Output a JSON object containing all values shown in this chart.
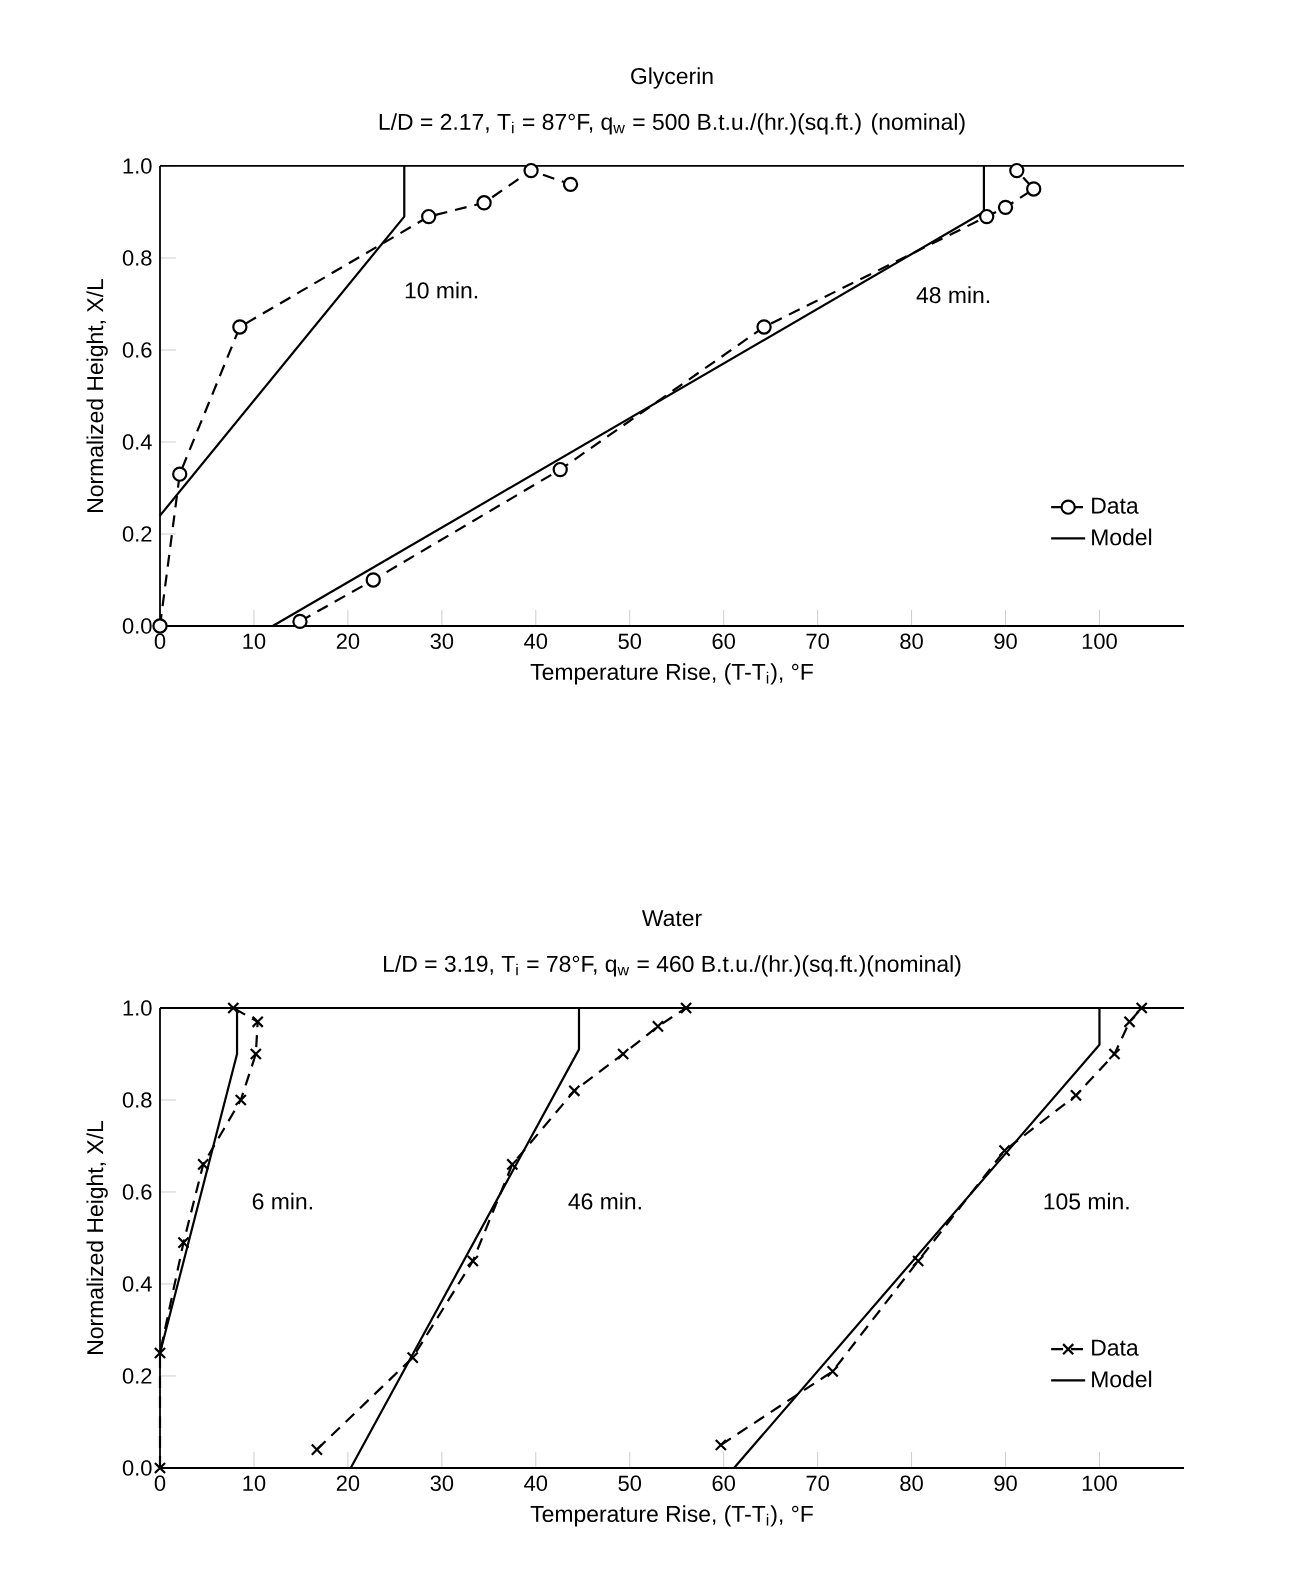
{
  "chart_data": [
    {
      "type": "line",
      "title": "Glycerin",
      "subtitle": "L/D = 2.17,  T$_{i}$ = 87°F,  q$_{w}$ = 500   B.t.u./(hr.)(sq.ft.) (nominal)",
      "xlabel": "Temperature Rise, (T-T$_{i}$), °F",
      "ylabel": "Normalized Height, X/L",
      "xlim": [
        0,
        109
      ],
      "ylim": [
        0,
        1.0
      ],
      "xticks": [
        0,
        10,
        20,
        30,
        40,
        50,
        60,
        70,
        80,
        90,
        100
      ],
      "yticks": [
        {
          "value": 0,
          "label": "0.0"
        },
        {
          "value": 0.2,
          "label": "0.2"
        },
        {
          "value": 0.4,
          "label": "0.4"
        },
        {
          "value": 0.6,
          "label": "0.6"
        },
        {
          "value": 0.8,
          "label": "0.8"
        },
        {
          "value": 1.0,
          "label": "1.0"
        }
      ],
      "legend": "bottom right",
      "series": [
        {
          "name": "Data",
          "color": "#000000",
          "marker": "circle",
          "line_style": "dashed",
          "x": [
            0,
            2.1,
            8.5,
            28.6,
            34.5,
            39.5,
            43.7
          ],
          "values": [
            0,
            0.33,
            0.65,
            0.89,
            0.92,
            0.99,
            0.96
          ]
        },
        {
          "name": "Model",
          "color": "#000000",
          "marker": "none",
          "line_style": "solid",
          "x": [
            0,
            26,
            26
          ],
          "values": [
            0.24,
            0.89,
            1.0
          ]
        },
        {
          "color": "#000000",
          "marker": "circle",
          "line_style": "dashed",
          "x": [
            14.9,
            22.7,
            42.6,
            64.3,
            88,
            90,
            93,
            91.2
          ],
          "values": [
            0.01,
            0.1,
            0.34,
            0.65,
            0.89,
            0.91,
            0.95,
            0.99
          ]
        },
        {
          "color": "#000000",
          "marker": "none",
          "line_style": "solid",
          "x": [
            12,
            87.7,
            87.7
          ],
          "values": [
            0,
            0.9,
            1.0
          ]
        }
      ],
      "annotations": [
        "10 min.",
        "48 min."
      ]
    },
    {
      "type": "line",
      "title": "Water",
      "subtitle": "L/D = 3.19,  T$_{i}$ = 78°F,  q$_{w}$ = 460   B.t.u./(hr.)(sq.ft.)(nominal)",
      "xlabel": "Temperature Rise, (T-T$_{i}$), °F",
      "ylabel": "Normalized Height, X/L",
      "xlim": [
        0,
        109
      ],
      "ylim": [
        0,
        1.0
      ],
      "xticks": [
        0,
        10,
        20,
        30,
        40,
        50,
        60,
        70,
        80,
        90,
        100
      ],
      "yticks": [
        {
          "value": 0,
          "label": "0.0"
        },
        {
          "value": 0.2,
          "label": "0.2"
        },
        {
          "value": 0.4,
          "label": "0.4"
        },
        {
          "value": 0.6,
          "label": "0.6"
        },
        {
          "value": 0.8,
          "label": "0.8"
        },
        {
          "value": 1.0,
          "label": "1.0"
        }
      ],
      "legend": "bottom right",
      "series": [
        {
          "name": "Data",
          "color": "#000000",
          "marker": "cross",
          "line_style": "dashed",
          "x": [
            0,
            0,
            2.5,
            4.6,
            8.6,
            10.2,
            10.4,
            7.8
          ],
          "values": [
            0,
            0.25,
            0.49,
            0.66,
            0.8,
            0.9,
            0.97,
            1.0
          ]
        },
        {
          "name": "Model",
          "color": "#000000",
          "marker": "none",
          "line_style": "solid",
          "x": [
            0,
            8.2,
            8.2
          ],
          "values": [
            0.25,
            0.9,
            1.0
          ]
        },
        {
          "color": "#000000",
          "marker": "cross",
          "line_style": "dashed",
          "x": [
            16.7,
            26.9,
            33.3,
            37.5,
            44.1,
            49.3,
            53,
            56
          ],
          "values": [
            0.04,
            0.24,
            0.45,
            0.66,
            0.82,
            0.9,
            0.96,
            1.0
          ]
        },
        {
          "color": "#000000",
          "marker": "none",
          "line_style": "solid",
          "x": [
            20.3,
            44.6,
            44.6
          ],
          "values": [
            0,
            0.91,
            1.0
          ]
        },
        {
          "color": "#000000",
          "marker": "cross",
          "line_style": "dashed",
          "x": [
            59.7,
            71.6,
            80.7,
            89.9,
            97.5,
            101.6,
            103.2,
            104.5
          ],
          "values": [
            0.05,
            0.21,
            0.45,
            0.69,
            0.81,
            0.9,
            0.97,
            1.0
          ]
        },
        {
          "color": "#000000",
          "marker": "none",
          "line_style": "solid",
          "x": [
            61.1,
            100,
            100
          ],
          "values": [
            0,
            0.92,
            1.0
          ]
        }
      ],
      "annotations": [
        "6 min.",
        "46 min.",
        "105 min."
      ]
    }
  ]
}
